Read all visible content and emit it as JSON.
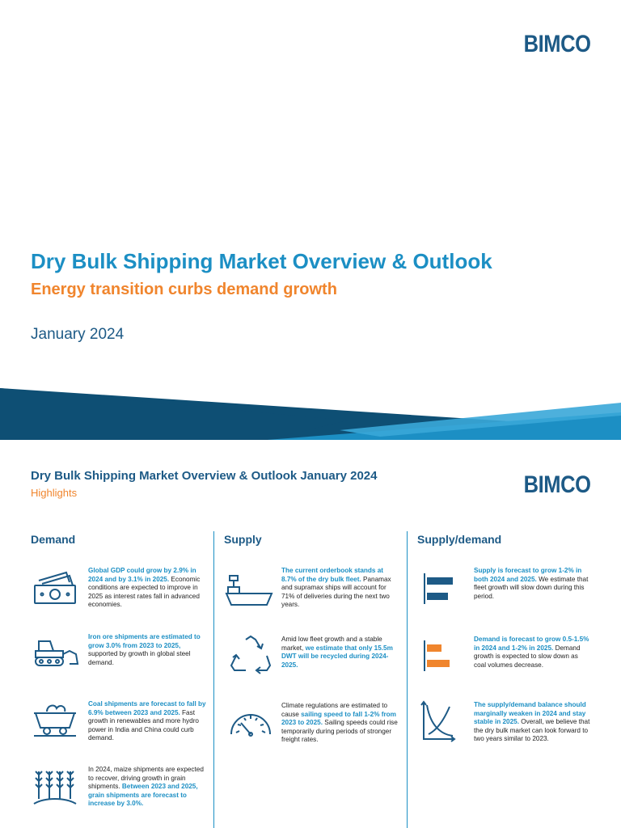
{
  "brand": {
    "logo_text": "BIMCO",
    "color": "#1d5a86"
  },
  "cover": {
    "title": "Dry Bulk Shipping Market Overview & Outlook",
    "subtitle": "Energy transition curbs demand growth",
    "date": "January 2024"
  },
  "highlights": {
    "title": "Dry Bulk Shipping Market Overview & Outlook January 2024",
    "subtitle": "Highlights",
    "columns": {
      "demand": "Demand",
      "supply": "Supply",
      "supply_demand": "Supply/demand"
    },
    "demand": [
      {
        "icon": "money-icon",
        "highlight": "Global GDP could grow by 2.9% in 2024 and by 3.1% in 2025.",
        "text": " Economic conditions are expected to improve in 2025 as interest rates fall in advanced economies."
      },
      {
        "icon": "bulldozer-icon",
        "highlight": "Iron ore shipments are estimated to grow 3.0% from 2023 to 2025,",
        "text": " supported by growth in global steel demand."
      },
      {
        "icon": "coal-cart-icon",
        "highlight": "Coal shipments are forecast to fall by 6.9% between 2023 and 2025.",
        "text": " Fast growth in renewables and more hydro power in India and China could curb demand."
      },
      {
        "icon": "grain-icon",
        "pre": "In 2024, maize shipments are expected to recover, driving growth in grain shipments. ",
        "highlight": "Between 2023 and 2025, grain shipments are forecast to increase by 3.0%."
      }
    ],
    "supply": [
      {
        "icon": "ship-icon",
        "highlight": "The current orderbook stands at 8.7% of the dry bulk fleet.",
        "text": " Panamax and supramax ships will account for 71% of deliveries during the next two years."
      },
      {
        "icon": "recycle-icon",
        "pre": "Amid low fleet growth and a stable market, ",
        "highlight": "we estimate that only 15.5m DWT will be recycled during 2024-2025."
      },
      {
        "icon": "speedometer-icon",
        "pre": "Climate regulations are estimated to cause ",
        "highlight": "sailing speed to fall 1-2% from 2023 to 2025.",
        "text": " Sailing speeds could rise temporarily during periods of stronger freight rates."
      }
    ],
    "supply_demand": [
      {
        "icon": "supply-bars-icon",
        "highlight": "Supply is forecast to grow 1-2% in both 2024 and 2025.",
        "text": " We estimate that fleet growth will slow down during this period."
      },
      {
        "icon": "demand-bars-icon",
        "highlight": "Demand is forecast to grow 0.5-1.5% in 2024 and 1-2% in 2025.",
        "text": " Demand growth is expected to slow down as coal volumes decrease."
      },
      {
        "icon": "supply-demand-curve-icon",
        "highlight": "The supply/demand balance should marginally weaken in 2024 and stay stable in 2025.",
        "text": " Overall, we believe that the dry bulk market can look forward to two years similar to 2023."
      }
    ]
  },
  "colors": {
    "accent_blue": "#1c8fc4",
    "navy": "#1d5a86",
    "orange": "#f0852d",
    "band_dark": "#0e4f74"
  }
}
